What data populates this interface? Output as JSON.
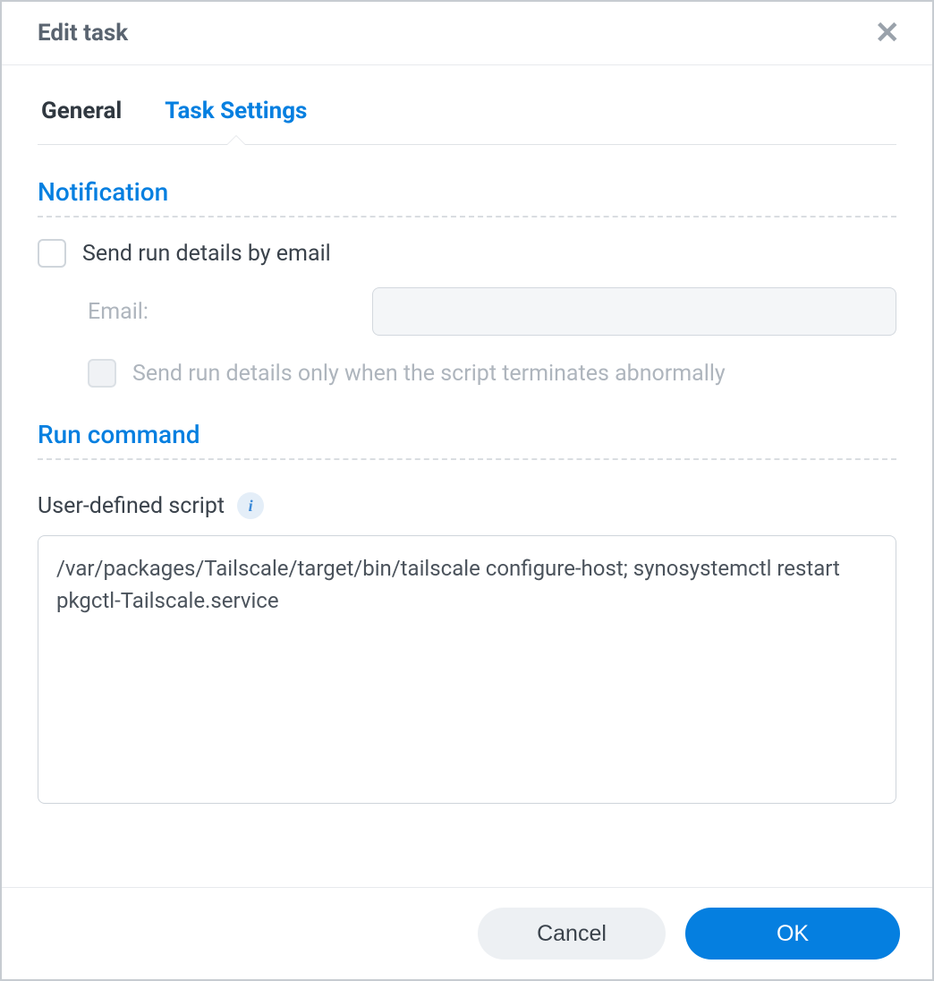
{
  "dialog": {
    "title": "Edit task"
  },
  "tabs": {
    "general": "General",
    "task_settings": "Task Settings",
    "active": "task_settings"
  },
  "notification": {
    "section_title": "Notification",
    "send_email_label": "Send run details by email",
    "send_email_checked": false,
    "email_label": "Email:",
    "email_value": "",
    "only_abnormal_label": "Send run details only when the script terminates abnormally",
    "only_abnormal_checked": false,
    "only_abnormal_disabled": true
  },
  "run_command": {
    "section_title": "Run command",
    "script_label": "User-defined script",
    "script_value": "/var/packages/Tailscale/target/bin/tailscale configure-host; synosystemctl restart pkgctl-Tailscale.service"
  },
  "footer": {
    "cancel": "Cancel",
    "ok": "OK"
  },
  "colors": {
    "accent": "#057fe0",
    "border": "#c7ccd1",
    "text": "#3a424b",
    "muted": "#aeb5bd",
    "divider": "#e0e3e7"
  }
}
